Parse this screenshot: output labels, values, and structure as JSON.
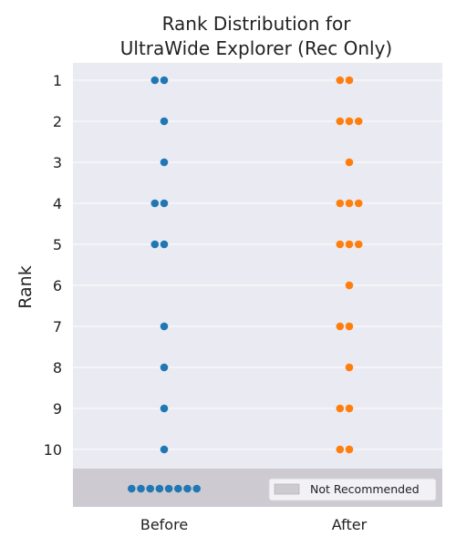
{
  "chart_data": {
    "type": "scatter",
    "subtype": "swarm",
    "title_lines": [
      "Rank Distribution for",
      "UltraWide Explorer (Rec Only)"
    ],
    "xlabel": "",
    "ylabel": "Rank",
    "categories": [
      "Before",
      "After"
    ],
    "y_ticks": [
      1,
      2,
      3,
      4,
      5,
      6,
      7,
      8,
      9,
      10
    ],
    "y_axis_inverted": true,
    "not_recommended_label": "Not Recommended",
    "grid": true,
    "legend_placement": "bottom-right",
    "series": [
      {
        "category": "Before",
        "color": "#1f77b4",
        "rank_counts": {
          "1": 2,
          "2": 1,
          "3": 1,
          "4": 2,
          "5": 2,
          "6": 0,
          "7": 1,
          "8": 1,
          "9": 1,
          "10": 1
        },
        "not_recommended_count": 8
      },
      {
        "category": "After",
        "color": "#ff7f0e",
        "rank_counts": {
          "1": 2,
          "2": 3,
          "3": 1,
          "4": 3,
          "5": 3,
          "6": 1,
          "7": 2,
          "8": 1,
          "9": 2,
          "10": 2
        },
        "not_recommended_count": 0
      }
    ]
  },
  "colors": {
    "plot_background": "#eaeaf2",
    "not_recommended_band": "#cdcbd1",
    "gridline": "#ffffff"
  }
}
